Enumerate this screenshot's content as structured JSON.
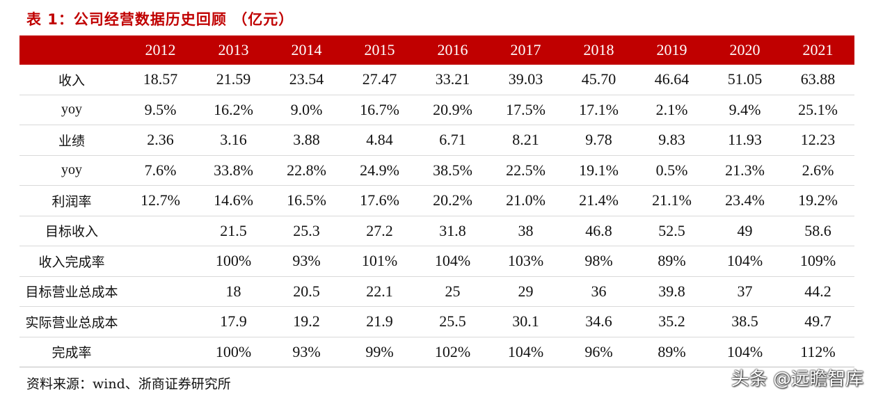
{
  "title": "表 1：公司经营数据历史回顾 （亿元）",
  "header": {
    "corner": "",
    "years": [
      "2012",
      "2013",
      "2014",
      "2015",
      "2016",
      "2017",
      "2018",
      "2019",
      "2020",
      "2021"
    ]
  },
  "rows": [
    {
      "label": "收入",
      "values": [
        "18.57",
        "21.59",
        "23.54",
        "27.47",
        "33.21",
        "39.03",
        "45.70",
        "46.64",
        "51.05",
        "63.88"
      ]
    },
    {
      "label": "yoy",
      "values": [
        "9.5%",
        "16.2%",
        "9.0%",
        "16.7%",
        "20.9%",
        "17.5%",
        "17.1%",
        "2.1%",
        "9.4%",
        "25.1%"
      ]
    },
    {
      "label": "业绩",
      "values": [
        "2.36",
        "3.16",
        "3.88",
        "4.84",
        "6.71",
        "8.21",
        "9.78",
        "9.83",
        "11.93",
        "12.23"
      ]
    },
    {
      "label": "yoy",
      "values": [
        "7.6%",
        "33.8%",
        "22.8%",
        "24.9%",
        "38.5%",
        "22.5%",
        "19.1%",
        "0.5%",
        "21.3%",
        "2.6%"
      ]
    },
    {
      "label": "利润率",
      "values": [
        "12.7%",
        "14.6%",
        "16.5%",
        "17.6%",
        "20.2%",
        "21.0%",
        "21.4%",
        "21.1%",
        "23.4%",
        "19.2%"
      ]
    },
    {
      "label": "目标收入",
      "values": [
        "",
        "21.5",
        "25.3",
        "27.2",
        "31.8",
        "38",
        "46.8",
        "52.5",
        "49",
        "58.6"
      ]
    },
    {
      "label": "收入完成率",
      "values": [
        "",
        "100%",
        "93%",
        "101%",
        "104%",
        "103%",
        "98%",
        "89%",
        "104%",
        "109%"
      ]
    },
    {
      "label": "目标营业总成本",
      "values": [
        "",
        "18",
        "20.5",
        "22.1",
        "25",
        "29",
        "36",
        "39.8",
        "37",
        "44.2"
      ]
    },
    {
      "label": "实际营业总成本",
      "values": [
        "",
        "17.9",
        "19.2",
        "21.9",
        "25.5",
        "30.1",
        "34.6",
        "35.2",
        "38.5",
        "49.7"
      ]
    },
    {
      "label": "完成率",
      "values": [
        "",
        "100%",
        "93%",
        "99%",
        "102%",
        "104%",
        "96%",
        "89%",
        "104%",
        "112%"
      ]
    }
  ],
  "source": "资料来源：wind、浙商证券研究所",
  "watermark": "头条 @远瞻智库",
  "colors": {
    "accent": "#c00000",
    "header_text": "#ffffff",
    "row_border": "#d9d9d9"
  }
}
